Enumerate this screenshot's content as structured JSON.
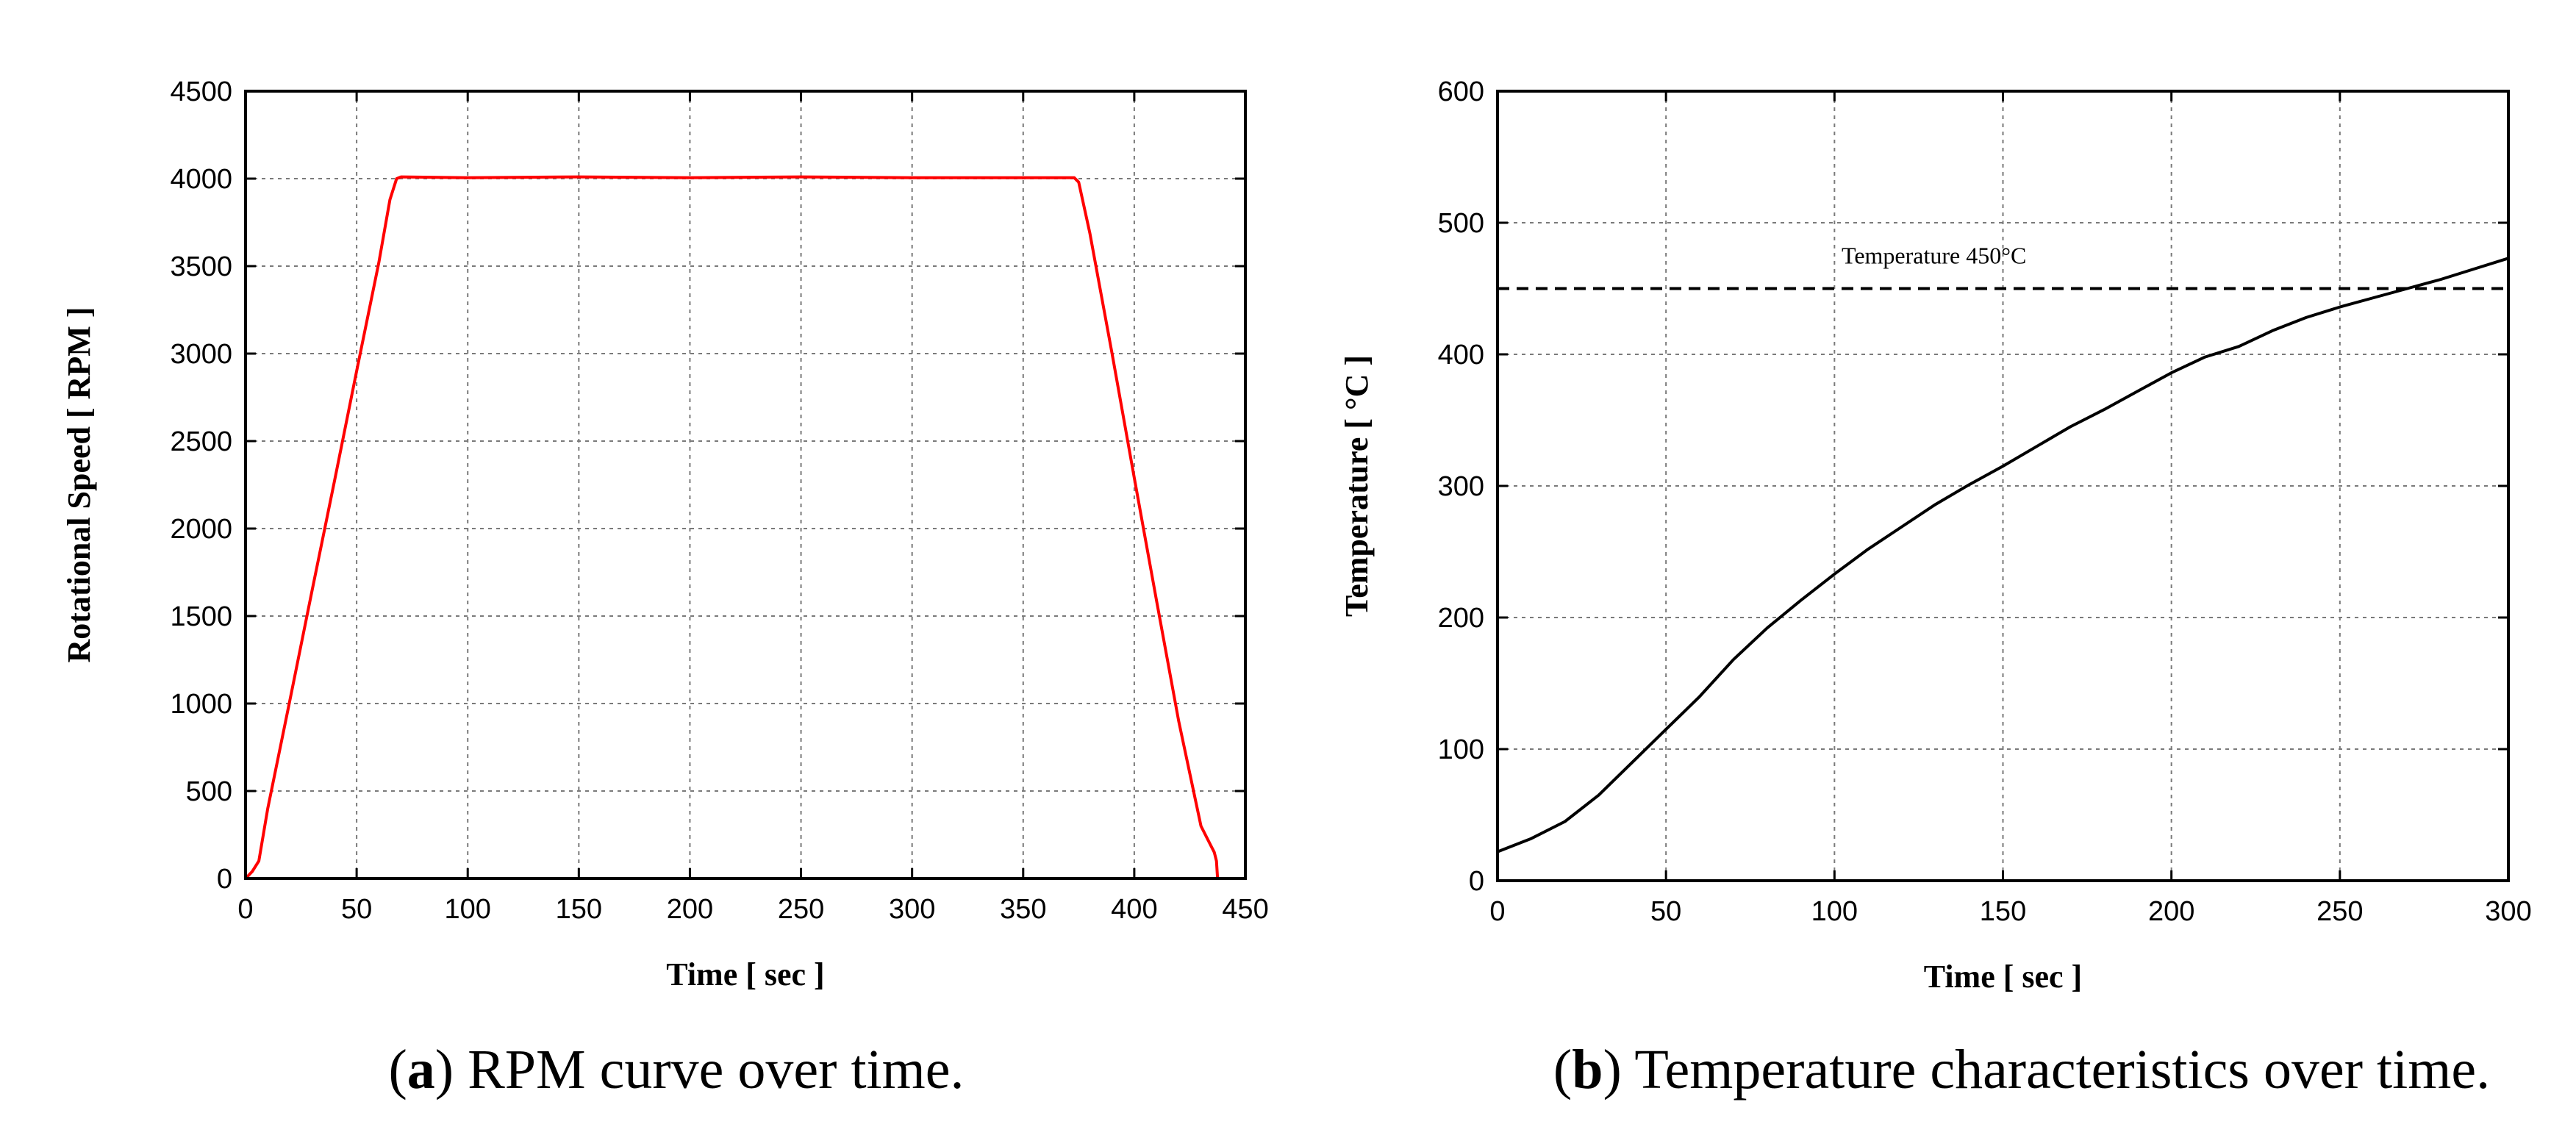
{
  "chart_data": [
    {
      "type": "line",
      "title": "",
      "xlabel": "Time [ sec ]",
      "ylabel": "Rotational Speed [ RPM ]",
      "xlim": [
        0,
        450
      ],
      "ylim": [
        0,
        4500
      ],
      "xticks": [
        0,
        50,
        100,
        150,
        200,
        250,
        300,
        350,
        400,
        450
      ],
      "yticks": [
        0,
        500,
        1000,
        1500,
        2000,
        2500,
        3000,
        3500,
        4000,
        4500
      ],
      "grid": true,
      "color": "#ff0000",
      "series": [
        {
          "name": "RPM",
          "x": [
            0,
            3,
            6,
            10,
            20,
            30,
            40,
            50,
            60,
            65,
            68,
            70,
            100,
            150,
            200,
            250,
            300,
            350,
            373,
            375,
            380,
            390,
            400,
            410,
            420,
            430,
            434,
            436,
            437,
            437.5
          ],
          "y": [
            0,
            40,
            100,
            400,
            1020,
            1650,
            2270,
            2900,
            3520,
            3880,
            4000,
            4010,
            4005,
            4010,
            4005,
            4010,
            4005,
            4005,
            4005,
            3980,
            3690,
            3000,
            2290,
            1590,
            900,
            300,
            200,
            150,
            100,
            0
          ]
        }
      ],
      "caption_letter": "a",
      "caption_text": ") RPM curve over time."
    },
    {
      "type": "line",
      "title": "",
      "xlabel": "Time [ sec ]",
      "ylabel": "Temperature [ °C ]",
      "xlim": [
        0,
        300
      ],
      "ylim": [
        0,
        600
      ],
      "xticks": [
        0,
        50,
        100,
        150,
        200,
        250,
        300
      ],
      "yticks": [
        0,
        100,
        200,
        300,
        400,
        500,
        600
      ],
      "grid": true,
      "color": "#000000",
      "series": [
        {
          "name": "Temperature",
          "x": [
            0,
            10,
            20,
            30,
            40,
            50,
            60,
            70,
            80,
            90,
            100,
            110,
            120,
            130,
            140,
            150,
            160,
            170,
            180,
            190,
            200,
            210,
            220,
            230,
            240,
            250,
            260,
            270,
            280,
            290,
            300
          ],
          "y": [
            22,
            32,
            45,
            65,
            90,
            115,
            140,
            168,
            192,
            213,
            233,
            252,
            269,
            286,
            301,
            315,
            330,
            345,
            358,
            372,
            386,
            398,
            406,
            418,
            428,
            436,
            443,
            450,
            457,
            465,
            473
          ]
        }
      ],
      "reference_line": {
        "y": 450,
        "style": "dashed",
        "label": "Temperature 450°C"
      },
      "caption_letter": "b",
      "caption_text": ") Temperature characteristics over time."
    }
  ]
}
